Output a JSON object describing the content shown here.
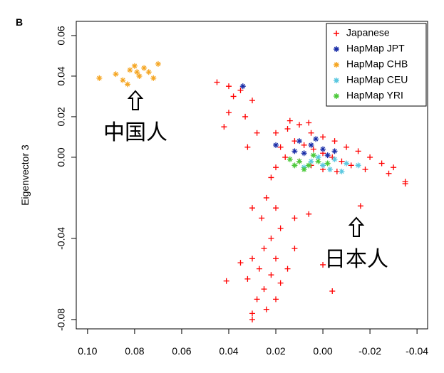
{
  "chart_data": {
    "type": "scatter",
    "panel_label": "B",
    "ylabel": "Eigenvector 3",
    "xlim": [
      0.1048,
      -0.0445
    ],
    "ylim": [
      -0.0846,
      0.067
    ],
    "xticks": [
      {
        "value": 0.1,
        "label": "0.10"
      },
      0.08,
      0.06,
      0.04,
      0.02,
      {
        "value": 0,
        "label": "0.00"
      },
      -0.02,
      -0.04
    ],
    "yticks": [
      0.06,
      0.04,
      0.02,
      {
        "value": 0,
        "label": "0.00"
      },
      -0.04,
      -0.08
    ],
    "legend": "topright",
    "annotations": [
      "中国人",
      "日本人"
    ],
    "series": [
      {
        "name": "Japanese",
        "color": "#ff0000",
        "marker": "plus",
        "x": [
          0.02,
          0.015,
          0.01,
          0.005,
          0.0,
          -0.005,
          -0.01,
          -0.015,
          -0.02,
          -0.025,
          -0.03,
          0.018,
          0.012,
          0.008,
          0.004,
          0.0,
          -0.004,
          -0.008,
          -0.012,
          -0.018,
          0.016,
          0.01,
          0.005,
          0.0,
          -0.006,
          0.02,
          0.014,
          0.006,
          -0.028,
          -0.035,
          0.022,
          0.024,
          0.02,
          0.026,
          0.018,
          0.03,
          0.012,
          0.022,
          0.045,
          0.04,
          0.035,
          0.038,
          0.03,
          0.033,
          0.04,
          0.028,
          0.042,
          0.032,
          0.025,
          0.03,
          0.02,
          0.027,
          0.022,
          0.032,
          0.018,
          0.025,
          0.028,
          0.02,
          0.035,
          0.015,
          0.024,
          0.03,
          0.041,
          0.03,
          -0.004,
          0.0,
          -0.035,
          -0.016,
          0.006,
          0.012
        ],
        "values": [
          0.012,
          0.014,
          0.016,
          0.012,
          0.01,
          0.008,
          0.005,
          0.003,
          0.0,
          -0.003,
          -0.005,
          0.005,
          0.008,
          0.006,
          0.004,
          0.002,
          0.0,
          -0.002,
          -0.004,
          -0.006,
          0.0,
          -0.002,
          -0.004,
          -0.006,
          -0.007,
          -0.005,
          0.018,
          0.017,
          -0.008,
          -0.012,
          -0.01,
          -0.02,
          -0.025,
          -0.03,
          -0.035,
          -0.025,
          -0.03,
          -0.04,
          0.037,
          0.035,
          0.033,
          0.03,
          0.028,
          0.02,
          0.022,
          0.012,
          0.015,
          0.005,
          -0.045,
          -0.05,
          -0.05,
          -0.055,
          -0.058,
          -0.06,
          -0.062,
          -0.065,
          -0.07,
          -0.07,
          -0.052,
          -0.055,
          -0.075,
          -0.077,
          -0.061,
          -0.08,
          -0.066,
          -0.053,
          -0.013,
          -0.024,
          -0.028,
          -0.045
        ]
      },
      {
        "name": "HapMap JPT",
        "color": "#1a2ea8",
        "marker": "star",
        "x": [
          0.01,
          0.005,
          0.0,
          0.008,
          0.003,
          -0.002,
          0.012,
          0.034,
          0.02,
          -0.005
        ],
        "values": [
          0.008,
          0.006,
          0.004,
          0.002,
          0.009,
          0.001,
          0.003,
          0.035,
          0.006,
          0.003
        ]
      },
      {
        "name": "HapMap CHB",
        "color": "#f5a623",
        "marker": "star",
        "x": [
          0.095,
          0.088,
          0.085,
          0.082,
          0.08,
          0.078,
          0.076,
          0.074,
          0.072,
          0.07,
          0.083,
          0.079
        ],
        "values": [
          0.039,
          0.041,
          0.038,
          0.043,
          0.045,
          0.04,
          0.044,
          0.042,
          0.039,
          0.046,
          0.036,
          0.042
        ]
      },
      {
        "name": "HapMap CEU",
        "color": "#5bc8e0",
        "marker": "star",
        "x": [
          0.005,
          0.0,
          -0.005,
          -0.01,
          -0.015,
          0.008,
          -0.003,
          0.002,
          -0.008
        ],
        "values": [
          -0.002,
          -0.004,
          -0.001,
          -0.003,
          -0.004,
          -0.005,
          -0.006,
          0.0,
          -0.007
        ]
      },
      {
        "name": "HapMap YRI",
        "color": "#4cc93a",
        "marker": "star",
        "x": [
          0.014,
          0.01,
          0.006,
          0.002,
          -0.002,
          0.012,
          0.004,
          0.008
        ],
        "values": [
          -0.001,
          -0.002,
          -0.004,
          -0.002,
          -0.003,
          -0.004,
          0.001,
          -0.006
        ]
      }
    ]
  }
}
